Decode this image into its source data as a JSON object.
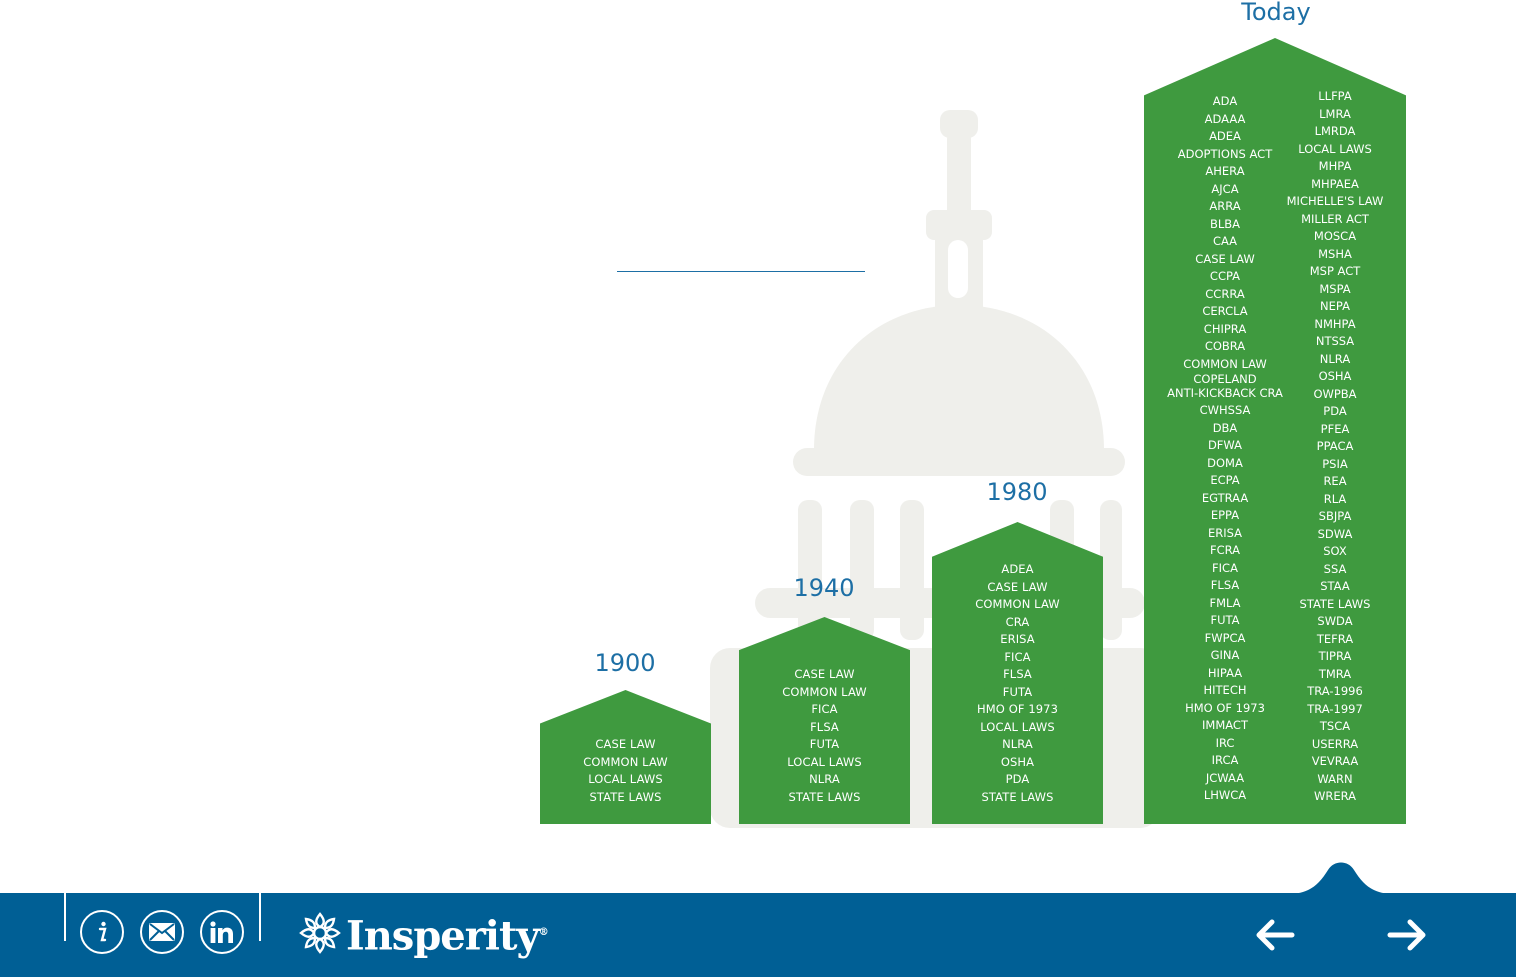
{
  "eras": [
    {
      "year": "1900",
      "laws": [
        "CASE LAW",
        "COMMON LAW",
        "LOCAL LAWS",
        "STATE LAWS"
      ]
    },
    {
      "year": "1940",
      "laws": [
        "CASE LAW",
        "COMMON LAW",
        "FICA",
        "FLSA",
        "FUTA",
        "LOCAL LAWS",
        "NLRA",
        "STATE LAWS"
      ]
    },
    {
      "year": "1980",
      "laws": [
        "ADEA",
        "CASE LAW",
        "COMMON LAW",
        "CRA",
        "ERISA",
        "FICA",
        "FLSA",
        "FUTA",
        "HMO OF 1973",
        "LOCAL LAWS",
        "NLRA",
        "OSHA",
        "PDA",
        "STATE LAWS"
      ]
    },
    {
      "year": "Today",
      "laws_left": [
        "ADA",
        "ADAAA",
        "ADEA",
        "ADOPTIONS ACT",
        "AHERA",
        "AJCA",
        "ARRA",
        "BLBA",
        "CAA",
        "CASE LAW",
        "CCPA",
        "CCRRA",
        "CERCLA",
        "CHIPRA",
        "COBRA",
        "COMMON LAW",
        "COPELAND",
        "ANTI-KICKBACK CRA",
        "CWHSSA",
        "DBA",
        "DFWA",
        "DOMA",
        "ECPA",
        "EGTRAA",
        "EPPA",
        "ERISA",
        "FCRA",
        "FICA",
        "FLSA",
        "FMLA",
        "FUTA",
        "FWPCA",
        "GINA",
        "HIPAA",
        "HITECH",
        "HMO OF 1973",
        "IMMACT",
        "IRC",
        "IRCA",
        "JCWAA",
        "LHWCA"
      ],
      "laws_right": [
        "LLFPA",
        "LMRA",
        "LMRDA",
        "LOCAL LAWS",
        "MHPA",
        "MHPAEA",
        "MICHELLE'S LAW",
        "MILLER ACT",
        "MOSCA",
        "MSHA",
        "MSP ACT",
        "MSPA",
        "NEPA",
        "NMHPA",
        "NTSSA",
        "NLRA",
        "OSHA",
        "OWPBA",
        "PDA",
        "PFEA",
        "PPACA",
        "PSIA",
        "REA",
        "RLA",
        "SBJPA",
        "SDWA",
        "SOX",
        "SSA",
        "STAA",
        "STATE LAWS",
        "SWDA",
        "TEFRA",
        "TIPRA",
        "TMRA",
        "TRA-1996",
        "TRA-1997",
        "TSCA",
        "USERRA",
        "VEVRAA",
        "WARN",
        "WRERA"
      ]
    }
  ],
  "footer": {
    "brand": "Insperity",
    "trademark": "®",
    "icons": [
      "info-icon",
      "mail-icon",
      "linkedin-icon",
      "arrow-left-icon",
      "arrow-right-icon"
    ]
  },
  "colors": {
    "green": "#3f9a3f",
    "blue": "#1d6fa5",
    "footer": "#005f95",
    "capitol": "#efefeb"
  }
}
